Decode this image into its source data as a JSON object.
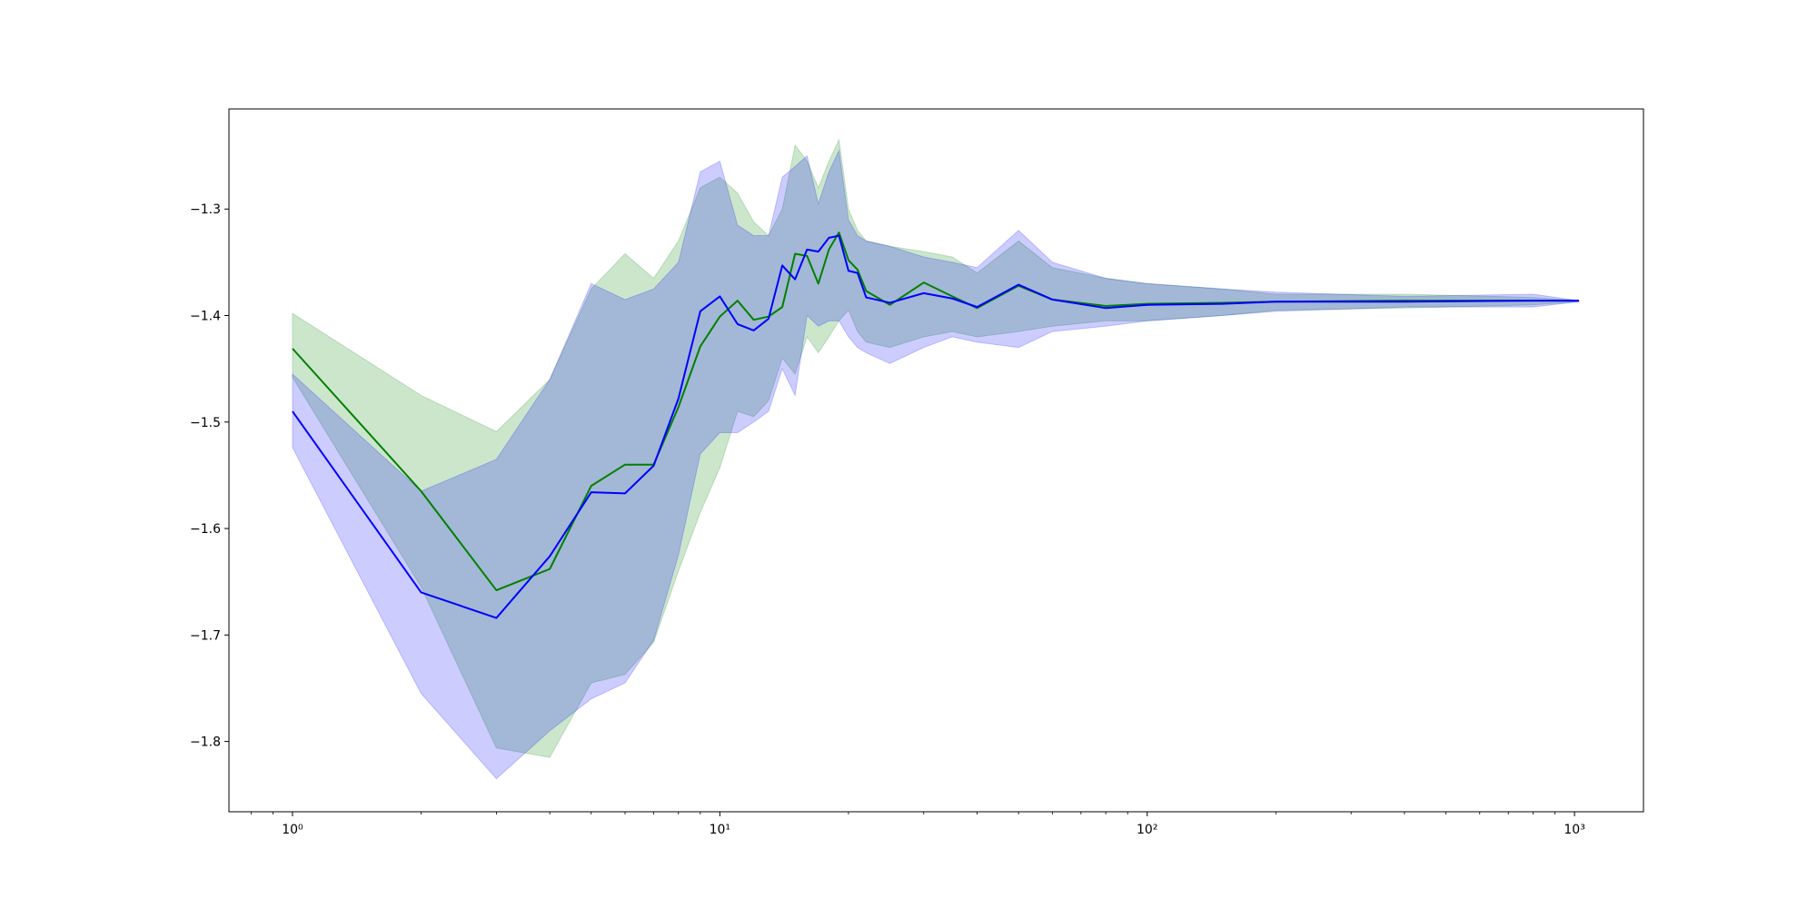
{
  "chart_data": {
    "type": "line",
    "xscale": "log",
    "xlim": [
      0.71,
      1450
    ],
    "ylim": [
      -1.866,
      -1.206
    ],
    "xticks": [
      {
        "value": 1,
        "label": "10⁰"
      },
      {
        "value": 10,
        "label": "10¹"
      },
      {
        "value": 100,
        "label": "10²"
      },
      {
        "value": 1000,
        "label": "10³"
      }
    ],
    "xminorticks": [
      0.8,
      0.9,
      2,
      3,
      4,
      5,
      6,
      7,
      8,
      9,
      20,
      30,
      40,
      50,
      60,
      70,
      80,
      90,
      200,
      300,
      400,
      500,
      600,
      700,
      800,
      900
    ],
    "yticks": [
      {
        "value": -1.8,
        "label": "−1.8"
      },
      {
        "value": -1.7,
        "label": "−1.7"
      },
      {
        "value": -1.6,
        "label": "−1.6"
      },
      {
        "value": -1.5,
        "label": "−1.5"
      },
      {
        "value": -1.4,
        "label": "−1.4"
      },
      {
        "value": -1.3,
        "label": "−1.3"
      }
    ],
    "band_alpha": 0.2,
    "x": [
      1,
      2,
      3,
      4,
      5,
      6,
      7,
      8,
      9,
      10,
      11,
      12,
      13,
      14,
      15,
      16,
      17,
      18,
      19,
      20,
      21,
      22,
      25,
      30,
      35,
      40,
      50,
      60,
      80,
      100,
      150,
      200,
      400,
      800,
      1024
    ],
    "series": [
      {
        "color": "green",
        "values": [
          -1.431,
          -1.565,
          -1.658,
          -1.638,
          -1.56,
          -1.54,
          -1.54,
          -1.486,
          -1.429,
          -1.401,
          -1.386,
          -1.404,
          -1.401,
          -1.392,
          -1.342,
          -1.344,
          -1.37,
          -1.338,
          -1.322,
          -1.348,
          -1.357,
          -1.377,
          -1.39,
          -1.369,
          -1.382,
          -1.393,
          -1.372,
          -1.385,
          -1.391,
          -1.389,
          -1.388,
          -1.387,
          -1.386,
          -1.386,
          -1.386
        ],
        "upper": [
          -1.398,
          -1.475,
          -1.509,
          -1.46,
          -1.375,
          -1.342,
          -1.365,
          -1.33,
          -1.28,
          -1.27,
          -1.285,
          -1.312,
          -1.325,
          -1.3,
          -1.24,
          -1.255,
          -1.28,
          -1.255,
          -1.235,
          -1.3,
          -1.32,
          -1.33,
          -1.335,
          -1.34,
          -1.345,
          -1.36,
          -1.33,
          -1.355,
          -1.365,
          -1.37,
          -1.375,
          -1.38,
          -1.38,
          -1.383,
          -1.386
        ],
        "lower": [
          -1.458,
          -1.655,
          -1.806,
          -1.815,
          -1.745,
          -1.737,
          -1.707,
          -1.64,
          -1.585,
          -1.543,
          -1.49,
          -1.495,
          -1.48,
          -1.44,
          -1.455,
          -1.42,
          -1.435,
          -1.42,
          -1.405,
          -1.395,
          -1.415,
          -1.425,
          -1.43,
          -1.42,
          -1.415,
          -1.42,
          -1.415,
          -1.41,
          -1.405,
          -1.405,
          -1.4,
          -1.395,
          -1.393,
          -1.39,
          -1.387
        ]
      },
      {
        "color": "blue",
        "values": [
          -1.49,
          -1.66,
          -1.684,
          -1.626,
          -1.566,
          -1.567,
          -1.541,
          -1.478,
          -1.396,
          -1.382,
          -1.408,
          -1.414,
          -1.403,
          -1.353,
          -1.366,
          -1.338,
          -1.34,
          -1.327,
          -1.325,
          -1.358,
          -1.36,
          -1.383,
          -1.388,
          -1.379,
          -1.384,
          -1.392,
          -1.371,
          -1.385,
          -1.393,
          -1.39,
          -1.389,
          -1.387,
          -1.387,
          -1.386,
          -1.386
        ],
        "upper": [
          -1.455,
          -1.565,
          -1.535,
          -1.46,
          -1.37,
          -1.385,
          -1.375,
          -1.35,
          -1.265,
          -1.255,
          -1.315,
          -1.325,
          -1.325,
          -1.27,
          -1.26,
          -1.25,
          -1.295,
          -1.265,
          -1.245,
          -1.31,
          -1.325,
          -1.33,
          -1.335,
          -1.345,
          -1.35,
          -1.355,
          -1.32,
          -1.35,
          -1.365,
          -1.37,
          -1.375,
          -1.378,
          -1.382,
          -1.38,
          -1.386
        ],
        "lower": [
          -1.524,
          -1.755,
          -1.835,
          -1.79,
          -1.76,
          -1.745,
          -1.705,
          -1.625,
          -1.53,
          -1.51,
          -1.51,
          -1.5,
          -1.49,
          -1.45,
          -1.475,
          -1.4,
          -1.41,
          -1.405,
          -1.405,
          -1.42,
          -1.43,
          -1.435,
          -1.445,
          -1.43,
          -1.42,
          -1.425,
          -1.43,
          -1.415,
          -1.41,
          -1.405,
          -1.4,
          -1.396,
          -1.392,
          -1.392,
          -1.387
        ]
      }
    ]
  }
}
